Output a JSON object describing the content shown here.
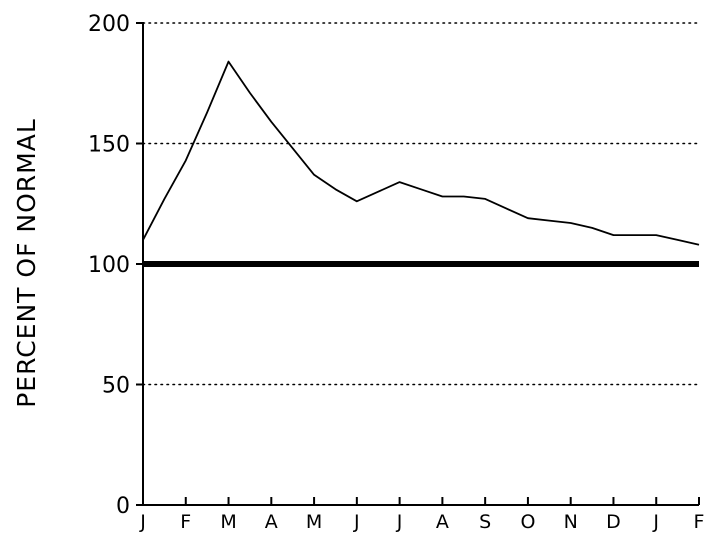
{
  "chart_data": {
    "type": "line",
    "title": "",
    "xlabel": "",
    "ylabel": "PERCENT OF NORMAL",
    "categories": [
      "J",
      "F",
      "M",
      "A",
      "M",
      "J",
      "J",
      "A",
      "S",
      "O",
      "N",
      "D",
      "J",
      "F"
    ],
    "x_ticks": [
      "J",
      "F",
      "M",
      "A",
      "M",
      "J",
      "J",
      "A",
      "S",
      "O",
      "N",
      "D",
      "J",
      "F"
    ],
    "y_ticks": [
      "0",
      "50",
      "100",
      "150",
      "200"
    ],
    "ylim": [
      0,
      200
    ],
    "grid": "horizontal dotted at 50, 150, 200",
    "reference_line": {
      "y": 100,
      "style": "thick solid"
    },
    "series": [
      {
        "x": [
          0,
          0.5,
          1,
          1.5,
          2,
          2.5,
          3,
          3.5,
          4,
          4.5,
          5,
          5.5,
          6,
          6.5,
          7,
          7.5,
          8,
          8.5,
          9,
          9.5,
          10,
          10.5,
          11,
          11.5,
          12,
          12.5,
          13
        ],
        "values": [
          110,
          127,
          143,
          163,
          184,
          171,
          159,
          148,
          137,
          131,
          126,
          130,
          134,
          131,
          128,
          128,
          127,
          123,
          119,
          118,
          117,
          115,
          112,
          112,
          112,
          110,
          108
        ]
      }
    ],
    "colors": {
      "line": "#000000",
      "grid": "#000000",
      "background": "#ffffff"
    }
  }
}
